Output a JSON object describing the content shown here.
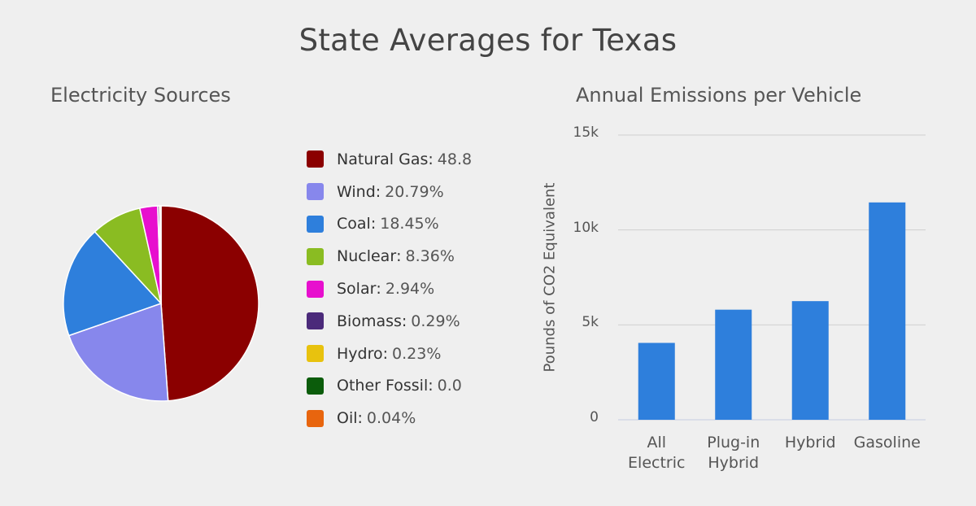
{
  "title": "State Averages for Texas",
  "chart_data": [
    {
      "type": "pie",
      "title": "Electricity Sources",
      "legend_position": "right",
      "slices": [
        {
          "label": "Natural Gas",
          "value": 48.8,
          "display": "48.8",
          "color": "#8b0000"
        },
        {
          "label": "Wind",
          "value": 20.79,
          "display": "20.79%",
          "color": "#8787ec"
        },
        {
          "label": "Coal",
          "value": 18.45,
          "display": "18.45%",
          "color": "#2e7fdc"
        },
        {
          "label": "Nuclear",
          "value": 8.36,
          "display": "8.36%",
          "color": "#8abc22"
        },
        {
          "label": "Solar",
          "value": 2.94,
          "display": "2.94%",
          "color": "#e70fce"
        },
        {
          "label": "Biomass",
          "value": 0.29,
          "display": "0.29%",
          "color": "#4b2a7a"
        },
        {
          "label": "Hydro",
          "value": 0.23,
          "display": "0.23%",
          "color": "#e8c20e"
        },
        {
          "label": "Other Fossil",
          "value": 0.0,
          "display": "0.0",
          "color": "#0b5c0b"
        },
        {
          "label": "Oil",
          "value": 0.04,
          "display": "0.04%",
          "color": "#e8650e"
        }
      ]
    },
    {
      "type": "bar",
      "title": "Annual Emissions per Vehicle",
      "ylabel": "Pounds of CO2 Equivalent",
      "ylim": [
        0,
        15000
      ],
      "yticks": [
        {
          "value": 0,
          "label": "0"
        },
        {
          "value": 5000,
          "label": "5k"
        },
        {
          "value": 10000,
          "label": "10k"
        },
        {
          "value": 15000,
          "label": "15k"
        }
      ],
      "categories": [
        {
          "lines": [
            "All",
            "Electric"
          ]
        },
        {
          "lines": [
            "Plug-in",
            "Hybrid"
          ]
        },
        {
          "lines": [
            "Hybrid"
          ]
        },
        {
          "lines": [
            "Gasoline"
          ]
        }
      ],
      "values": [
        4050,
        5800,
        6250,
        11450
      ],
      "bar_color": "#2e7fdc",
      "grid": true
    }
  ]
}
